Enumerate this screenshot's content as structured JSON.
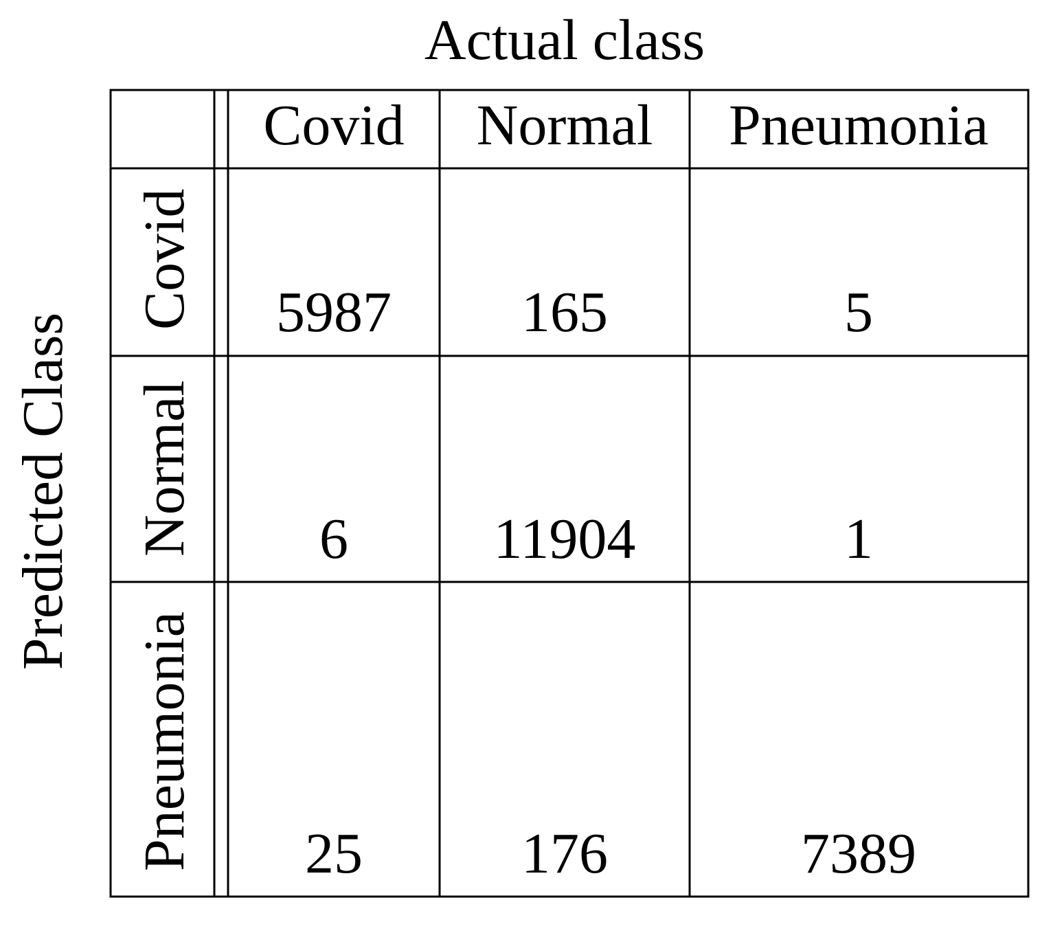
{
  "table": {
    "column_title": "Actual class",
    "row_title": "Predicted Class",
    "columns": [
      "Covid",
      "Normal",
      "Pneumonia"
    ],
    "rows": [
      {
        "label": "Covid",
        "values": [
          5987,
          165,
          5
        ]
      },
      {
        "label": "Normal",
        "values": [
          6,
          11904,
          1
        ]
      },
      {
        "label": "Pneumonia",
        "values": [
          25,
          176,
          7389
        ]
      }
    ]
  }
}
